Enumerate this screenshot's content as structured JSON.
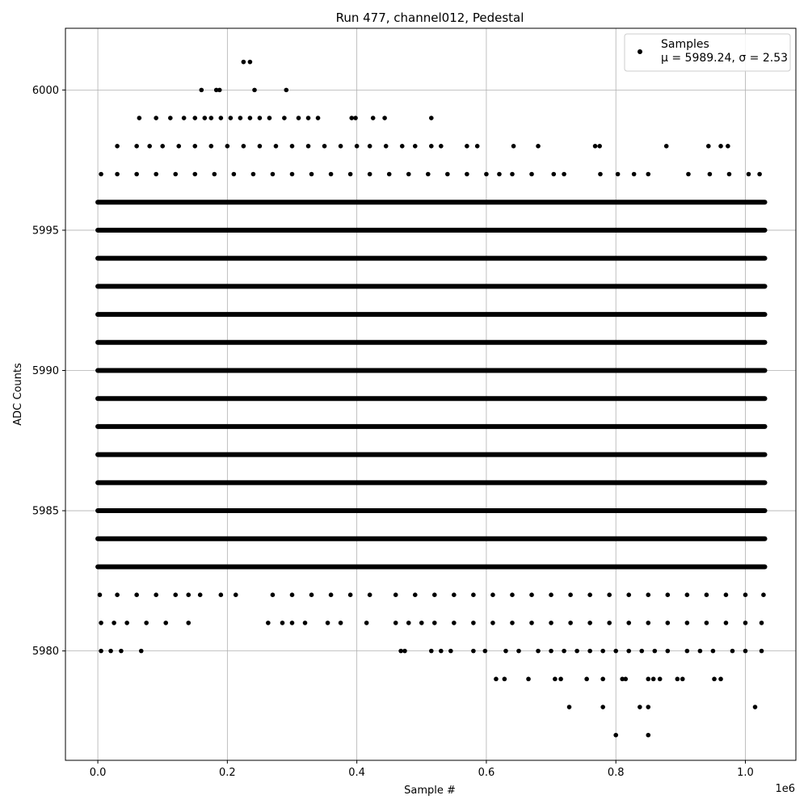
{
  "chart_data": {
    "type": "scatter",
    "title": "Run 477, channel012, Pedestal",
    "xlabel": "Sample #",
    "ylabel": "ADC Counts",
    "x_offset_text": "1e6",
    "xlim": [
      -0.05,
      1.078
    ],
    "ylim": [
      5976.1,
      6002.2
    ],
    "x_tick_values": [
      0.0,
      0.2,
      0.4,
      0.6,
      0.8,
      1.0
    ],
    "x_tick_labels": [
      "0.0",
      "0.2",
      "0.4",
      "0.6",
      "0.8",
      "1.0"
    ],
    "y_tick_values": [
      5980,
      5985,
      5990,
      5995,
      6000
    ],
    "y_tick_labels": [
      "5980",
      "5985",
      "5990",
      "5995",
      "6000"
    ],
    "grid": true,
    "legend_position": "top-right",
    "marker_color": "#000000",
    "series": [
      {
        "name": "Samples",
        "stats_label": "μ = 5989.24, σ = 2.53",
        "dense_bands": [
          {
            "y": 5983,
            "x_range": [
              0.0,
              1.03
            ]
          },
          {
            "y": 5984,
            "x_range": [
              0.0,
              1.03
            ]
          },
          {
            "y": 5985,
            "x_range": [
              0.0,
              1.03
            ]
          },
          {
            "y": 5986,
            "x_range": [
              0.0,
              1.03
            ]
          },
          {
            "y": 5987,
            "x_range": [
              0.0,
              1.03
            ]
          },
          {
            "y": 5988,
            "x_range": [
              0.0,
              1.03
            ]
          },
          {
            "y": 5989,
            "x_range": [
              0.0,
              1.03
            ]
          },
          {
            "y": 5990,
            "x_range": [
              0.0,
              1.03
            ]
          },
          {
            "y": 5991,
            "x_range": [
              0.0,
              1.03
            ]
          },
          {
            "y": 5992,
            "x_range": [
              0.0,
              1.03
            ]
          },
          {
            "y": 5993,
            "x_range": [
              0.0,
              1.03
            ]
          },
          {
            "y": 5994,
            "x_range": [
              0.0,
              1.03
            ]
          },
          {
            "y": 5995,
            "x_range": [
              0.0,
              1.03
            ]
          },
          {
            "y": 5996,
            "x_range": [
              0.0,
              1.03
            ]
          }
        ],
        "sparse_points": [
          {
            "x": 0.225,
            "y": 6001
          },
          {
            "x": 0.235,
            "y": 6001
          },
          {
            "x": 0.16,
            "y": 6000
          },
          {
            "x": 0.183,
            "y": 6000
          },
          {
            "x": 0.188,
            "y": 6000
          },
          {
            "x": 0.242,
            "y": 6000
          },
          {
            "x": 0.291,
            "y": 6000
          },
          {
            "x": 0.064,
            "y": 5999
          },
          {
            "x": 0.09,
            "y": 5999
          },
          {
            "x": 0.112,
            "y": 5999
          },
          {
            "x": 0.133,
            "y": 5999
          },
          {
            "x": 0.15,
            "y": 5999
          },
          {
            "x": 0.165,
            "y": 5999
          },
          {
            "x": 0.175,
            "y": 5999
          },
          {
            "x": 0.19,
            "y": 5999
          },
          {
            "x": 0.205,
            "y": 5999
          },
          {
            "x": 0.22,
            "y": 5999
          },
          {
            "x": 0.235,
            "y": 5999
          },
          {
            "x": 0.25,
            "y": 5999
          },
          {
            "x": 0.265,
            "y": 5999
          },
          {
            "x": 0.288,
            "y": 5999
          },
          {
            "x": 0.31,
            "y": 5999
          },
          {
            "x": 0.325,
            "y": 5999
          },
          {
            "x": 0.34,
            "y": 5999
          },
          {
            "x": 0.392,
            "y": 5999
          },
          {
            "x": 0.398,
            "y": 5999
          },
          {
            "x": 0.425,
            "y": 5999
          },
          {
            "x": 0.443,
            "y": 5999
          },
          {
            "x": 0.515,
            "y": 5999
          },
          {
            "x": 0.03,
            "y": 5998
          },
          {
            "x": 0.06,
            "y": 5998
          },
          {
            "x": 0.08,
            "y": 5998
          },
          {
            "x": 0.1,
            "y": 5998
          },
          {
            "x": 0.125,
            "y": 5998
          },
          {
            "x": 0.15,
            "y": 5998
          },
          {
            "x": 0.175,
            "y": 5998
          },
          {
            "x": 0.2,
            "y": 5998
          },
          {
            "x": 0.225,
            "y": 5998
          },
          {
            "x": 0.25,
            "y": 5998
          },
          {
            "x": 0.275,
            "y": 5998
          },
          {
            "x": 0.3,
            "y": 5998
          },
          {
            "x": 0.325,
            "y": 5998
          },
          {
            "x": 0.35,
            "y": 5998
          },
          {
            "x": 0.375,
            "y": 5998
          },
          {
            "x": 0.4,
            "y": 5998
          },
          {
            "x": 0.42,
            "y": 5998
          },
          {
            "x": 0.445,
            "y": 5998
          },
          {
            "x": 0.47,
            "y": 5998
          },
          {
            "x": 0.49,
            "y": 5998
          },
          {
            "x": 0.515,
            "y": 5998
          },
          {
            "x": 0.53,
            "y": 5998
          },
          {
            "x": 0.57,
            "y": 5998
          },
          {
            "x": 0.586,
            "y": 5998
          },
          {
            "x": 0.642,
            "y": 5998
          },
          {
            "x": 0.68,
            "y": 5998
          },
          {
            "x": 0.768,
            "y": 5998
          },
          {
            "x": 0.775,
            "y": 5998
          },
          {
            "x": 0.878,
            "y": 5998
          },
          {
            "x": 0.943,
            "y": 5998
          },
          {
            "x": 0.962,
            "y": 5998
          },
          {
            "x": 0.973,
            "y": 5998
          },
          {
            "x": 0.005,
            "y": 5997
          },
          {
            "x": 0.03,
            "y": 5997
          },
          {
            "x": 0.06,
            "y": 5997
          },
          {
            "x": 0.09,
            "y": 5997
          },
          {
            "x": 0.12,
            "y": 5997
          },
          {
            "x": 0.15,
            "y": 5997
          },
          {
            "x": 0.18,
            "y": 5997
          },
          {
            "x": 0.21,
            "y": 5997
          },
          {
            "x": 0.24,
            "y": 5997
          },
          {
            "x": 0.27,
            "y": 5997
          },
          {
            "x": 0.3,
            "y": 5997
          },
          {
            "x": 0.33,
            "y": 5997
          },
          {
            "x": 0.36,
            "y": 5997
          },
          {
            "x": 0.39,
            "y": 5997
          },
          {
            "x": 0.42,
            "y": 5997
          },
          {
            "x": 0.45,
            "y": 5997
          },
          {
            "x": 0.48,
            "y": 5997
          },
          {
            "x": 0.51,
            "y": 5997
          },
          {
            "x": 0.54,
            "y": 5997
          },
          {
            "x": 0.57,
            "y": 5997
          },
          {
            "x": 0.6,
            "y": 5997
          },
          {
            "x": 0.62,
            "y": 5997
          },
          {
            "x": 0.64,
            "y": 5997
          },
          {
            "x": 0.67,
            "y": 5997
          },
          {
            "x": 0.704,
            "y": 5997
          },
          {
            "x": 0.72,
            "y": 5997
          },
          {
            "x": 0.776,
            "y": 5997
          },
          {
            "x": 0.803,
            "y": 5997
          },
          {
            "x": 0.828,
            "y": 5997
          },
          {
            "x": 0.85,
            "y": 5997
          },
          {
            "x": 0.912,
            "y": 5997
          },
          {
            "x": 0.945,
            "y": 5997
          },
          {
            "x": 0.975,
            "y": 5997
          },
          {
            "x": 1.005,
            "y": 5997
          },
          {
            "x": 1.022,
            "y": 5997
          },
          {
            "x": 0.003,
            "y": 5982
          },
          {
            "x": 0.03,
            "y": 5982
          },
          {
            "x": 0.06,
            "y": 5982
          },
          {
            "x": 0.09,
            "y": 5982
          },
          {
            "x": 0.12,
            "y": 5982
          },
          {
            "x": 0.14,
            "y": 5982
          },
          {
            "x": 0.158,
            "y": 5982
          },
          {
            "x": 0.19,
            "y": 5982
          },
          {
            "x": 0.213,
            "y": 5982
          },
          {
            "x": 0.27,
            "y": 5982
          },
          {
            "x": 0.3,
            "y": 5982
          },
          {
            "x": 0.33,
            "y": 5982
          },
          {
            "x": 0.36,
            "y": 5982
          },
          {
            "x": 0.39,
            "y": 5982
          },
          {
            "x": 0.42,
            "y": 5982
          },
          {
            "x": 0.46,
            "y": 5982
          },
          {
            "x": 0.49,
            "y": 5982
          },
          {
            "x": 0.52,
            "y": 5982
          },
          {
            "x": 0.55,
            "y": 5982
          },
          {
            "x": 0.58,
            "y": 5982
          },
          {
            "x": 0.61,
            "y": 5982
          },
          {
            "x": 0.64,
            "y": 5982
          },
          {
            "x": 0.67,
            "y": 5982
          },
          {
            "x": 0.7,
            "y": 5982
          },
          {
            "x": 0.73,
            "y": 5982
          },
          {
            "x": 0.76,
            "y": 5982
          },
          {
            "x": 0.79,
            "y": 5982
          },
          {
            "x": 0.82,
            "y": 5982
          },
          {
            "x": 0.85,
            "y": 5982
          },
          {
            "x": 0.88,
            "y": 5982
          },
          {
            "x": 0.91,
            "y": 5982
          },
          {
            "x": 0.94,
            "y": 5982
          },
          {
            "x": 0.97,
            "y": 5982
          },
          {
            "x": 1.0,
            "y": 5982
          },
          {
            "x": 1.028,
            "y": 5982
          },
          {
            "x": 0.005,
            "y": 5981
          },
          {
            "x": 0.025,
            "y": 5981
          },
          {
            "x": 0.045,
            "y": 5981
          },
          {
            "x": 0.075,
            "y": 5981
          },
          {
            "x": 0.105,
            "y": 5981
          },
          {
            "x": 0.14,
            "y": 5981
          },
          {
            "x": 0.263,
            "y": 5981
          },
          {
            "x": 0.285,
            "y": 5981
          },
          {
            "x": 0.3,
            "y": 5981
          },
          {
            "x": 0.32,
            "y": 5981
          },
          {
            "x": 0.355,
            "y": 5981
          },
          {
            "x": 0.375,
            "y": 5981
          },
          {
            "x": 0.415,
            "y": 5981
          },
          {
            "x": 0.46,
            "y": 5981
          },
          {
            "x": 0.48,
            "y": 5981
          },
          {
            "x": 0.5,
            "y": 5981
          },
          {
            "x": 0.52,
            "y": 5981
          },
          {
            "x": 0.55,
            "y": 5981
          },
          {
            "x": 0.58,
            "y": 5981
          },
          {
            "x": 0.61,
            "y": 5981
          },
          {
            "x": 0.64,
            "y": 5981
          },
          {
            "x": 0.67,
            "y": 5981
          },
          {
            "x": 0.7,
            "y": 5981
          },
          {
            "x": 0.73,
            "y": 5981
          },
          {
            "x": 0.76,
            "y": 5981
          },
          {
            "x": 0.79,
            "y": 5981
          },
          {
            "x": 0.82,
            "y": 5981
          },
          {
            "x": 0.85,
            "y": 5981
          },
          {
            "x": 0.88,
            "y": 5981
          },
          {
            "x": 0.91,
            "y": 5981
          },
          {
            "x": 0.94,
            "y": 5981
          },
          {
            "x": 0.97,
            "y": 5981
          },
          {
            "x": 1.0,
            "y": 5981
          },
          {
            "x": 1.025,
            "y": 5981
          },
          {
            "x": 0.005,
            "y": 5980
          },
          {
            "x": 0.02,
            "y": 5980
          },
          {
            "x": 0.036,
            "y": 5980
          },
          {
            "x": 0.067,
            "y": 5980
          },
          {
            "x": 0.468,
            "y": 5980
          },
          {
            "x": 0.474,
            "y": 5980
          },
          {
            "x": 0.515,
            "y": 5980
          },
          {
            "x": 0.53,
            "y": 5980
          },
          {
            "x": 0.545,
            "y": 5980
          },
          {
            "x": 0.58,
            "y": 5980
          },
          {
            "x": 0.598,
            "y": 5980
          },
          {
            "x": 0.63,
            "y": 5980
          },
          {
            "x": 0.65,
            "y": 5980
          },
          {
            "x": 0.68,
            "y": 5980
          },
          {
            "x": 0.7,
            "y": 5980
          },
          {
            "x": 0.72,
            "y": 5980
          },
          {
            "x": 0.74,
            "y": 5980
          },
          {
            "x": 0.76,
            "y": 5980
          },
          {
            "x": 0.78,
            "y": 5980
          },
          {
            "x": 0.8,
            "y": 5980
          },
          {
            "x": 0.82,
            "y": 5980
          },
          {
            "x": 0.84,
            "y": 5980
          },
          {
            "x": 0.86,
            "y": 5980
          },
          {
            "x": 0.88,
            "y": 5980
          },
          {
            "x": 0.91,
            "y": 5980
          },
          {
            "x": 0.93,
            "y": 5980
          },
          {
            "x": 0.95,
            "y": 5980
          },
          {
            "x": 0.98,
            "y": 5980
          },
          {
            "x": 1.0,
            "y": 5980
          },
          {
            "x": 1.025,
            "y": 5980
          },
          {
            "x": 0.615,
            "y": 5979
          },
          {
            "x": 0.628,
            "y": 5979
          },
          {
            "x": 0.665,
            "y": 5979
          },
          {
            "x": 0.706,
            "y": 5979
          },
          {
            "x": 0.715,
            "y": 5979
          },
          {
            "x": 0.755,
            "y": 5979
          },
          {
            "x": 0.78,
            "y": 5979
          },
          {
            "x": 0.81,
            "y": 5979
          },
          {
            "x": 0.815,
            "y": 5979
          },
          {
            "x": 0.85,
            "y": 5979
          },
          {
            "x": 0.858,
            "y": 5979
          },
          {
            "x": 0.868,
            "y": 5979
          },
          {
            "x": 0.895,
            "y": 5979
          },
          {
            "x": 0.903,
            "y": 5979
          },
          {
            "x": 0.952,
            "y": 5979
          },
          {
            "x": 0.962,
            "y": 5979
          },
          {
            "x": 0.728,
            "y": 5978
          },
          {
            "x": 0.78,
            "y": 5978
          },
          {
            "x": 0.837,
            "y": 5978
          },
          {
            "x": 0.85,
            "y": 5978
          },
          {
            "x": 1.015,
            "y": 5978
          },
          {
            "x": 0.8,
            "y": 5977
          },
          {
            "x": 0.85,
            "y": 5977
          }
        ]
      }
    ]
  }
}
